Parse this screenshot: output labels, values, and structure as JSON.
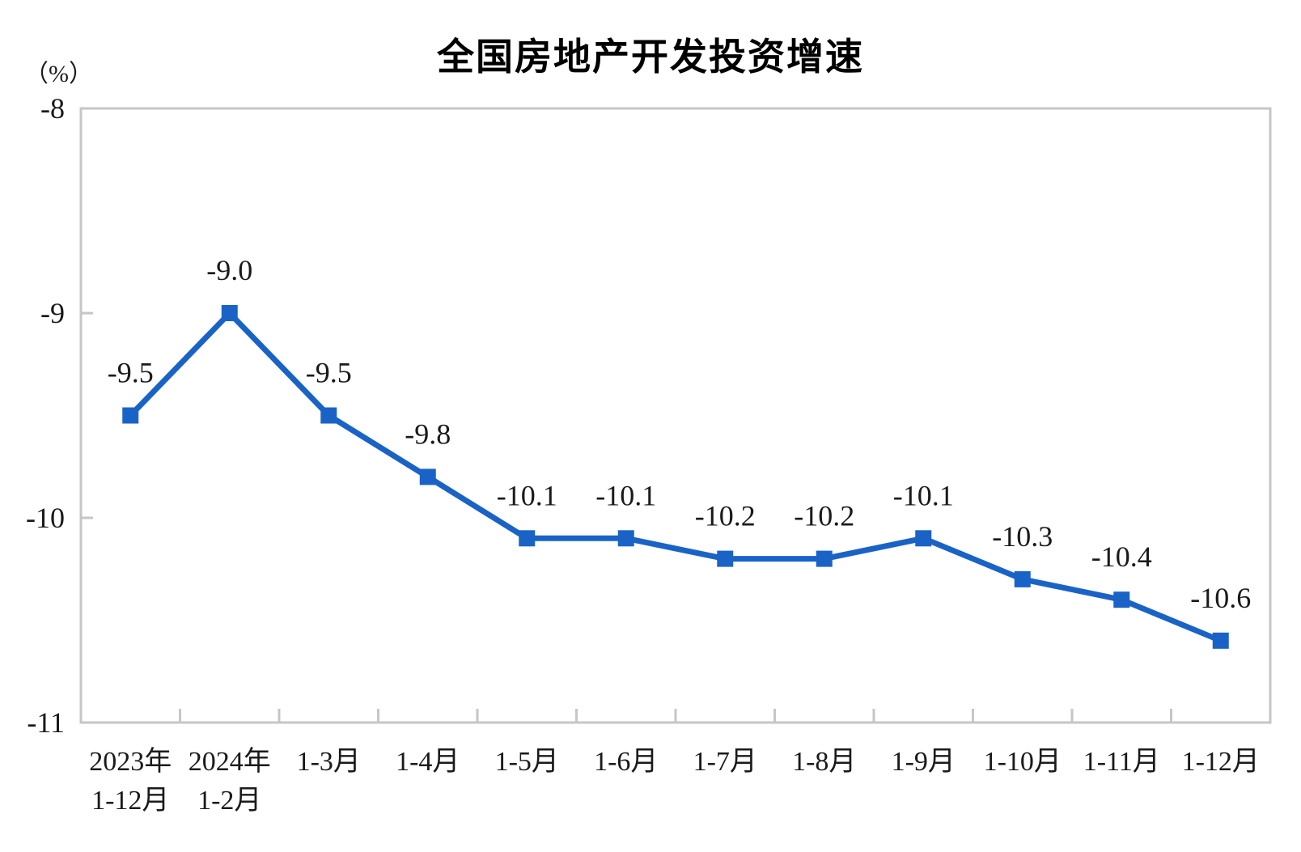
{
  "chart_data": {
    "type": "line",
    "title": "全国房地产开发投资增速",
    "unit_label": "（%）",
    "xlabel": "",
    "ylabel": "（%）",
    "ylim": [
      -11,
      -8
    ],
    "y_ticks": [
      {
        "value": -8,
        "label": "-8"
      },
      {
        "value": -9,
        "label": "-9"
      },
      {
        "value": -10,
        "label": "-10"
      },
      {
        "value": -11,
        "label": "-11"
      }
    ],
    "grid": false,
    "legend": "none",
    "categories": [
      {
        "lines": [
          "2023年",
          "1-12月"
        ]
      },
      {
        "lines": [
          "2024年",
          "1-2月"
        ]
      },
      {
        "lines": [
          "1-3月"
        ]
      },
      {
        "lines": [
          "1-4月"
        ]
      },
      {
        "lines": [
          "1-5月"
        ]
      },
      {
        "lines": [
          "1-6月"
        ]
      },
      {
        "lines": [
          "1-7月"
        ]
      },
      {
        "lines": [
          "1-8月"
        ]
      },
      {
        "lines": [
          "1-9月"
        ]
      },
      {
        "lines": [
          "1-10月"
        ]
      },
      {
        "lines": [
          "1-11月"
        ]
      },
      {
        "lines": [
          "1-12月"
        ]
      }
    ],
    "series": [
      {
        "name": "全国房地产开发投资增速",
        "values": [
          -9.5,
          -9.0,
          -9.5,
          -9.8,
          -10.1,
          -10.1,
          -10.2,
          -10.2,
          -10.1,
          -10.3,
          -10.4,
          -10.6
        ],
        "point_labels": [
          "-9.5",
          "-9.0",
          "-9.5",
          "-9.8",
          "-10.1",
          "-10.1",
          "-10.2",
          "-10.2",
          "-10.1",
          "-10.3",
          "-10.4",
          "-10.6"
        ]
      }
    ],
    "colors": {
      "line": "#1A63C6",
      "marker": "#1A63C6",
      "axis": "#C6C6C6",
      "text": "#1A1A1A",
      "title": "#000000"
    }
  }
}
